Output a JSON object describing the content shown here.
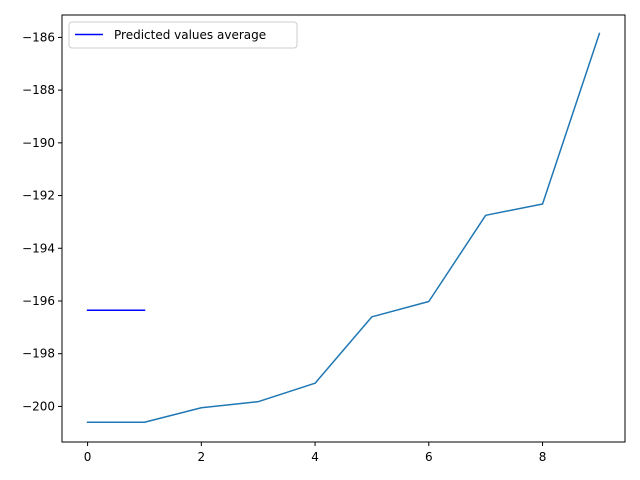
{
  "chart_data": {
    "type": "line",
    "title": "",
    "xlabel": "",
    "ylabel": "",
    "xlim": [
      -0.45,
      9.45
    ],
    "ylim": [
      -201.35,
      -185.15
    ],
    "grid": false,
    "legend_placement": "upper-left",
    "x_ticks": [
      {
        "value": 0,
        "label": "0"
      },
      {
        "value": 2,
        "label": "2"
      },
      {
        "value": 4,
        "label": "4"
      },
      {
        "value": 6,
        "label": "6"
      },
      {
        "value": 8,
        "label": "8"
      }
    ],
    "y_ticks": [
      {
        "value": -186,
        "label": "−186"
      },
      {
        "value": -188,
        "label": "−188"
      },
      {
        "value": -190,
        "label": "−190"
      },
      {
        "value": -192,
        "label": "−192"
      },
      {
        "value": -194,
        "label": "−194"
      },
      {
        "value": -196,
        "label": "−196"
      },
      {
        "value": -198,
        "label": "−198"
      },
      {
        "value": -200,
        "label": "−200"
      }
    ],
    "series": [
      {
        "name": "",
        "color": "#1f77b4",
        "x": [
          0,
          1,
          2,
          3,
          4,
          5,
          6,
          7,
          8,
          9
        ],
        "y": [
          -200.6,
          -200.6,
          -200.05,
          -199.82,
          -199.12,
          -196.6,
          -196.02,
          -192.75,
          -192.32,
          -185.85
        ]
      },
      {
        "name": "Predicted values average",
        "color": "#0000ff",
        "x": [
          0,
          1
        ],
        "y": [
          -196.35,
          -196.35
        ]
      }
    ],
    "legend": [
      {
        "label": "Predicted values average",
        "color": "#0000ff"
      }
    ]
  }
}
